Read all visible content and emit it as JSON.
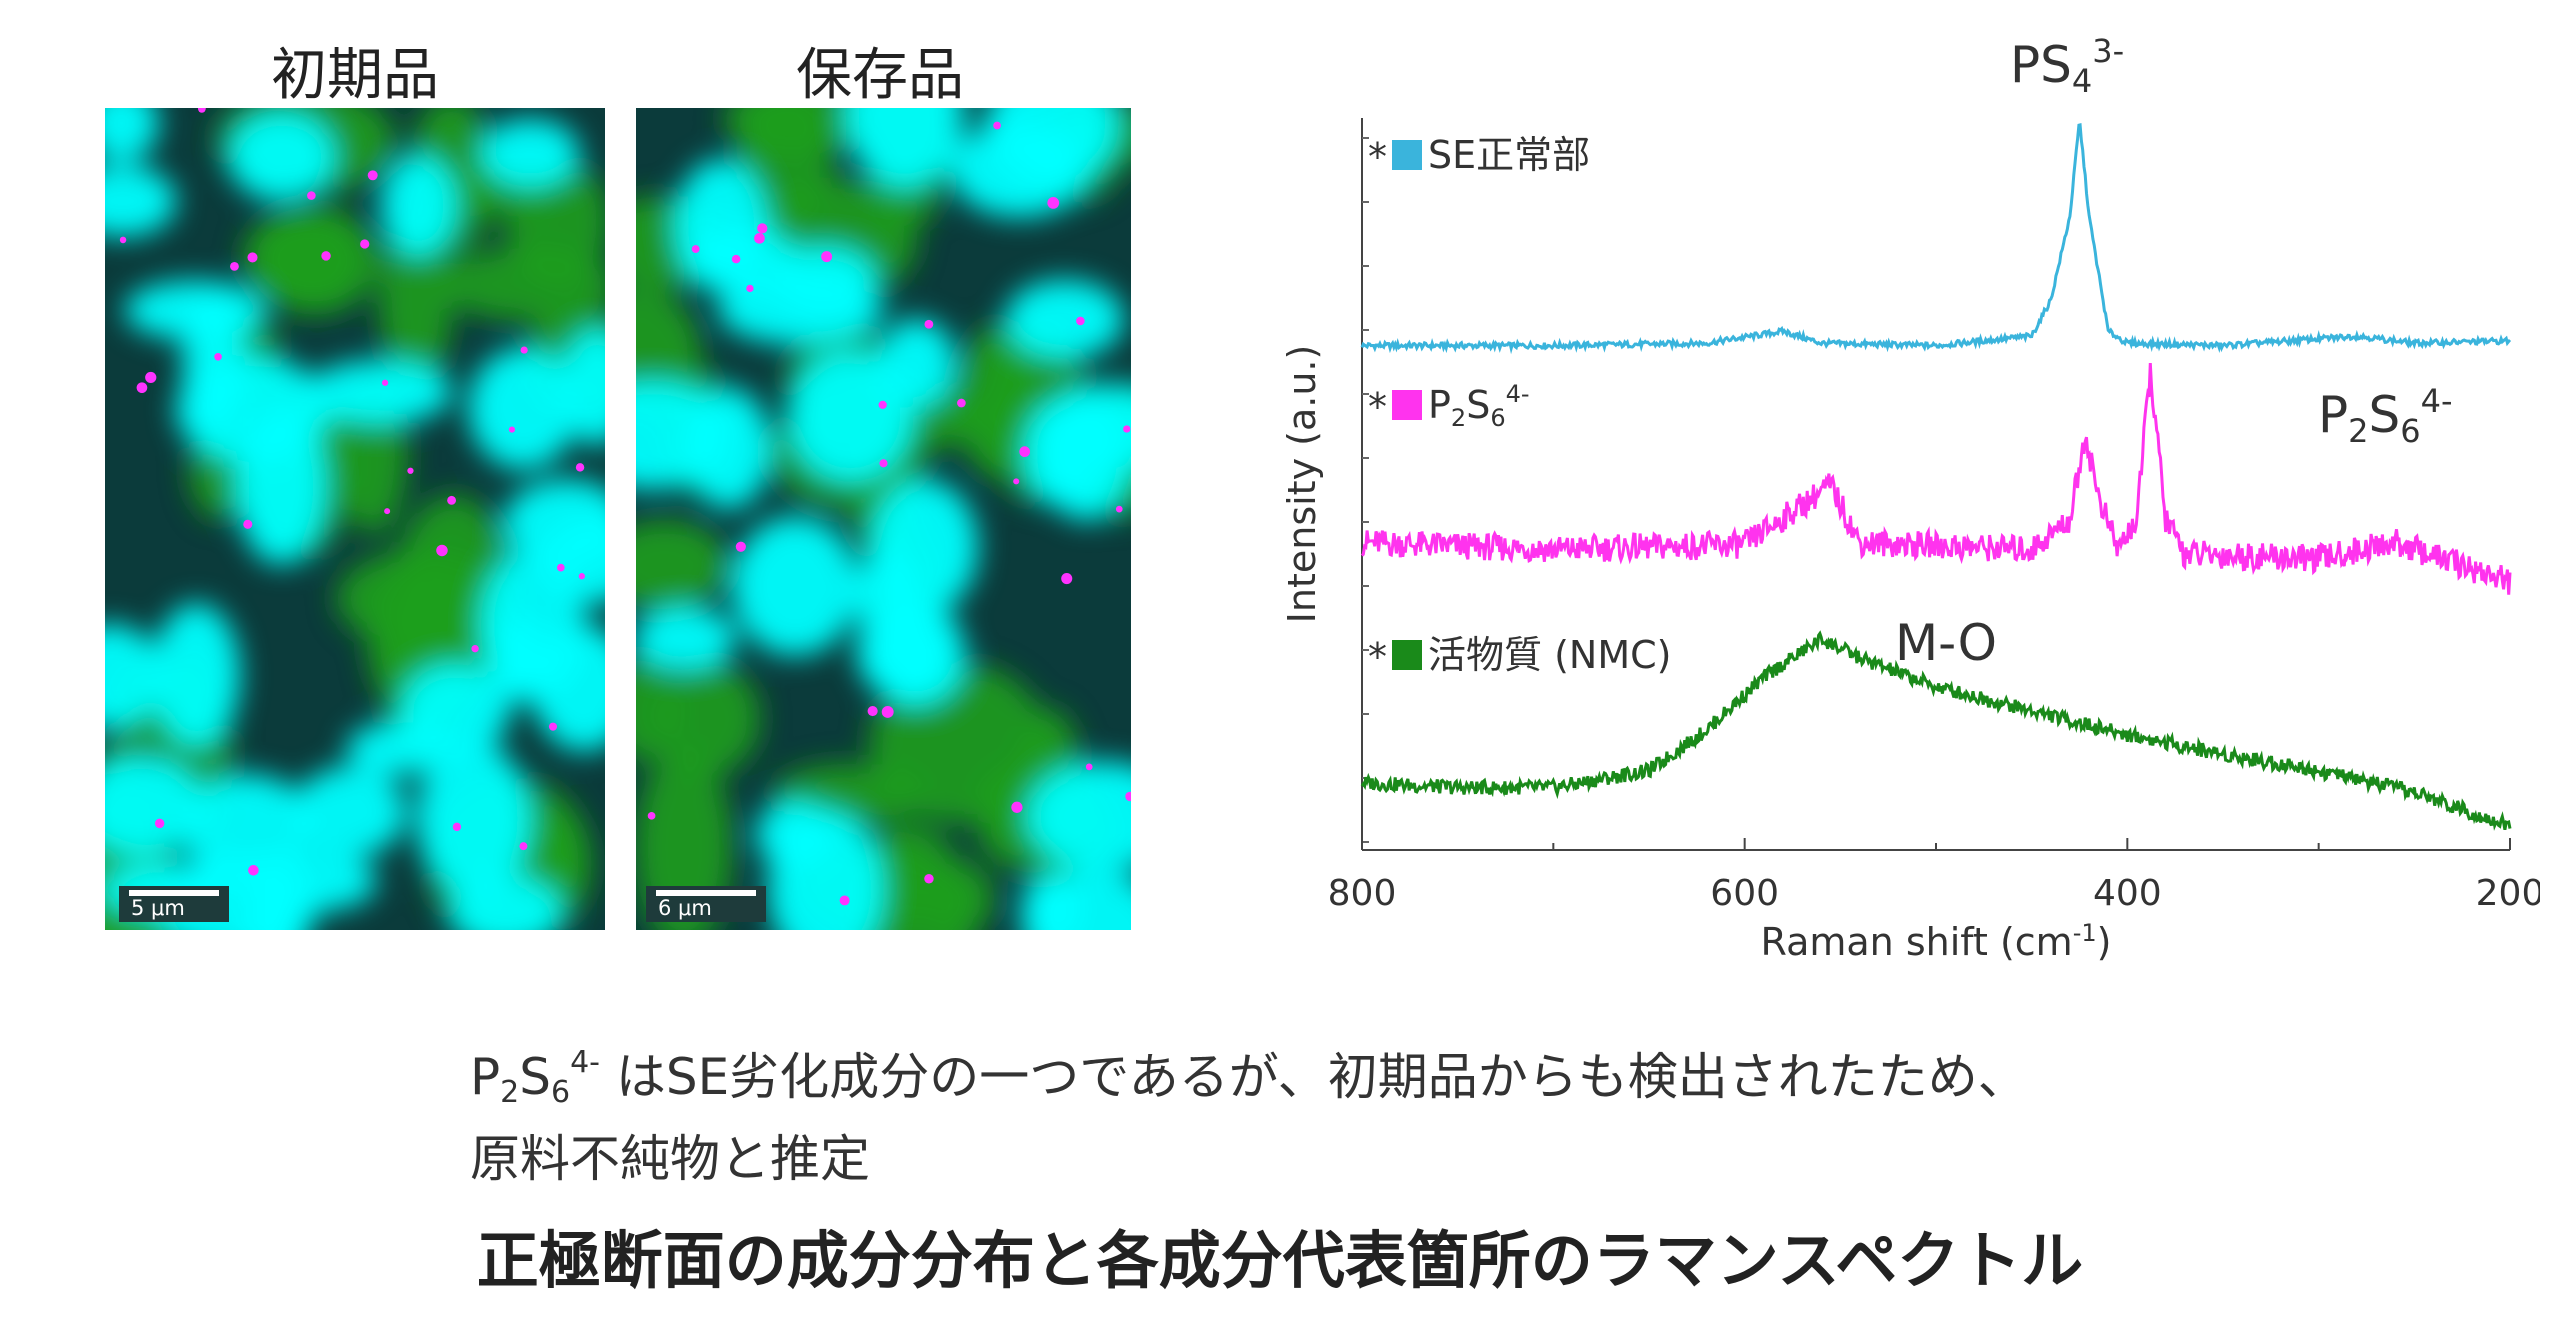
{
  "maps": [
    {
      "title": "初期品",
      "scale": "5 μm"
    },
    {
      "title": "保存品",
      "scale": "6 μm"
    }
  ],
  "colors": {
    "cyan": "#00ffff",
    "green": "#1f9e1f",
    "magenta": "#ff33ff",
    "dark": "#0b3b3b",
    "se": "#3ab4dc",
    "p2s6": "#ff33ee",
    "nmc": "#1a8a1a"
  },
  "chart_data": {
    "type": "line",
    "title": "",
    "xlabel": "Raman shift (cm",
    "xlabel_sup": "-1",
    "xlabel_end": ")",
    "ylabel": "Intensity (a.u.)",
    "xlim": [
      800,
      200
    ],
    "x_ticks": [
      "800",
      "600",
      "400",
      "200"
    ],
    "grid": false,
    "series": [
      {
        "name": "SE正常部",
        "color": "#3ab4dc",
        "x": [
          800,
          700,
          620,
          580,
          560,
          500,
          450,
          440,
          430,
          425,
          420,
          410,
          400,
          350,
          280,
          250,
          200
        ],
        "y": [
          0.06,
          0.06,
          0.07,
          0.12,
          0.07,
          0.06,
          0.1,
          0.25,
          0.6,
          1.0,
          0.6,
          0.12,
          0.07,
          0.06,
          0.1,
          0.07,
          0.08
        ]
      },
      {
        "name": "P2S6 4-",
        "color": "#ff33ee",
        "x": [
          800,
          700,
          600,
          555,
          540,
          450,
          430,
          422,
          415,
          405,
          395,
          388,
          380,
          370,
          300,
          260,
          200
        ],
        "y": [
          0.25,
          0.22,
          0.24,
          0.5,
          0.25,
          0.22,
          0.35,
          0.72,
          0.45,
          0.22,
          0.35,
          1.0,
          0.35,
          0.2,
          0.18,
          0.25,
          0.08
        ]
      },
      {
        "name": "活物質 (NMC)",
        "color": "#1a8a1a",
        "x": [
          800,
          750,
          700,
          650,
          620,
          590,
          560,
          540,
          500,
          450,
          400,
          350,
          300,
          250,
          200
        ],
        "y": [
          0.28,
          0.26,
          0.26,
          0.33,
          0.5,
          0.72,
          0.88,
          0.8,
          0.68,
          0.58,
          0.48,
          0.4,
          0.33,
          0.24,
          0.1
        ]
      }
    ],
    "legend": [
      {
        "marker": "*",
        "label": "SE正常部"
      },
      {
        "marker": "*",
        "label_p": "P",
        "label_sub1": "2",
        "label_s": "S",
        "label_sub2": "6",
        "label_sup": "4-"
      },
      {
        "marker": "*",
        "label": "活物質 (NMC)"
      }
    ],
    "annotations": [
      {
        "text": "PS",
        "sub": "4",
        "sup": "3-"
      },
      {
        "text": "P",
        "sub1": "2",
        "mid": "S",
        "sub2": "6",
        "sup": "4-"
      },
      {
        "text": "M-O"
      }
    ]
  },
  "caption": {
    "p": "P",
    "sub1": "2",
    "s": "S",
    "sub2": "6",
    "sup": "4-",
    "line1_rest": " はSE劣化成分の一つであるが、初期品からも検出されたため、",
    "line2": "原料不純物と推定"
  },
  "footer_title": "正極断面の成分分布と各成分代表箇所のラマンスペクトル"
}
